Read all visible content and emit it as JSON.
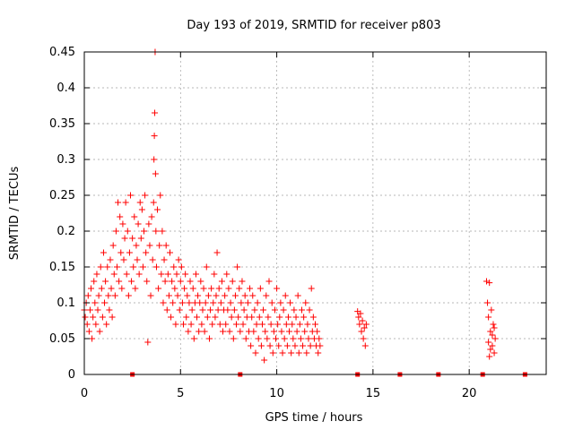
{
  "chart_data": {
    "type": "scatter",
    "title": "Day 193 of 2019, SRMTID for receiver p803",
    "xlabel": "GPS time / hours",
    "ylabel": "SRMTID / TECUs",
    "xlim": [
      0,
      24
    ],
    "ylim": [
      0,
      0.45
    ],
    "x_ticks": [
      0,
      5,
      10,
      15,
      20
    ],
    "x_tick_labels": [
      "0",
      "5",
      "10",
      "15",
      "20"
    ],
    "y_ticks": [
      0,
      0.05,
      0.1,
      0.15,
      0.2,
      0.25,
      0.3,
      0.35,
      0.4,
      0.45
    ],
    "y_tick_labels": [
      "0",
      "0.05",
      "0.1",
      "0.15",
      "0.2",
      "0.25",
      "0.3",
      "0.35",
      "0.4",
      "0.45"
    ],
    "grid": true,
    "marker": "+",
    "series_color": "#ff0000",
    "series": [
      {
        "name": "SRMTID",
        "points": [
          [
            0.0,
            0.09
          ],
          [
            0.05,
            0.08
          ],
          [
            0.1,
            0.1
          ],
          [
            0.15,
            0.07
          ],
          [
            0.2,
            0.11
          ],
          [
            0.25,
            0.06
          ],
          [
            0.3,
            0.09
          ],
          [
            0.35,
            0.12
          ],
          [
            0.4,
            0.05
          ],
          [
            0.45,
            0.08
          ],
          [
            0.5,
            0.13
          ],
          [
            0.55,
            0.1
          ],
          [
            0.6,
            0.07
          ],
          [
            0.65,
            0.14
          ],
          [
            0.7,
            0.09
          ],
          [
            0.75,
            0.11
          ],
          [
            0.8,
            0.06
          ],
          [
            0.85,
            0.15
          ],
          [
            0.9,
            0.12
          ],
          [
            0.95,
            0.08
          ],
          [
            1.0,
            0.17
          ],
          [
            1.05,
            0.1
          ],
          [
            1.1,
            0.13
          ],
          [
            1.15,
            0.07
          ],
          [
            1.2,
            0.15
          ],
          [
            1.25,
            0.11
          ],
          [
            1.3,
            0.09
          ],
          [
            1.35,
            0.16
          ],
          [
            1.4,
            0.12
          ],
          [
            1.45,
            0.08
          ],
          [
            1.5,
            0.18
          ],
          [
            1.55,
            0.14
          ],
          [
            1.6,
            0.11
          ],
          [
            1.65,
            0.2
          ],
          [
            1.7,
            0.15
          ],
          [
            1.75,
            0.24
          ],
          [
            1.8,
            0.13
          ],
          [
            1.85,
            0.22
          ],
          [
            1.9,
            0.17
          ],
          [
            1.95,
            0.12
          ],
          [
            2.0,
            0.21
          ],
          [
            2.05,
            0.16
          ],
          [
            2.1,
            0.19
          ],
          [
            2.15,
            0.24
          ],
          [
            2.2,
            0.14
          ],
          [
            2.25,
            0.2
          ],
          [
            2.3,
            0.11
          ],
          [
            2.35,
            0.17
          ],
          [
            2.4,
            0.25
          ],
          [
            2.45,
            0.13
          ],
          [
            2.5,
            0.19
          ],
          [
            2.55,
            0.15
          ],
          [
            2.6,
            0.22
          ],
          [
            2.65,
            0.12
          ],
          [
            2.7,
            0.18
          ],
          [
            2.75,
            0.16
          ],
          [
            2.8,
            0.21
          ],
          [
            2.85,
            0.14
          ],
          [
            2.9,
            0.24
          ],
          [
            2.95,
            0.19
          ],
          [
            3.0,
            0.23
          ],
          [
            3.05,
            0.15
          ],
          [
            3.1,
            0.2
          ],
          [
            3.15,
            0.25
          ],
          [
            3.2,
            0.17
          ],
          [
            3.25,
            0.13
          ],
          [
            3.3,
            0.045
          ],
          [
            3.35,
            0.21
          ],
          [
            3.4,
            0.18
          ],
          [
            3.45,
            0.11
          ],
          [
            3.5,
            0.22
          ],
          [
            3.55,
            0.16
          ],
          [
            3.6,
            0.24
          ],
          [
            3.62,
            0.3
          ],
          [
            3.64,
            0.333
          ],
          [
            3.66,
            0.365
          ],
          [
            3.68,
            0.45
          ],
          [
            3.7,
            0.28
          ],
          [
            3.72,
            0.2
          ],
          [
            3.75,
            0.15
          ],
          [
            3.8,
            0.23
          ],
          [
            3.85,
            0.12
          ],
          [
            3.9,
            0.18
          ],
          [
            3.95,
            0.25
          ],
          [
            4.0,
            0.14
          ],
          [
            4.05,
            0.2
          ],
          [
            4.1,
            0.1
          ],
          [
            4.15,
            0.16
          ],
          [
            4.2,
            0.13
          ],
          [
            4.25,
            0.18
          ],
          [
            4.3,
            0.09
          ],
          [
            4.35,
            0.14
          ],
          [
            4.4,
            0.11
          ],
          [
            4.45,
            0.17
          ],
          [
            4.5,
            0.08
          ],
          [
            4.55,
            0.13
          ],
          [
            4.6,
            0.1
          ],
          [
            4.65,
            0.15
          ],
          [
            4.7,
            0.12
          ],
          [
            4.75,
            0.07
          ],
          [
            4.8,
            0.14
          ],
          [
            4.85,
            0.11
          ],
          [
            4.9,
            0.16
          ],
          [
            4.95,
            0.09
          ],
          [
            5.0,
            0.13
          ],
          [
            5.05,
            0.15
          ],
          [
            5.1,
            0.1
          ],
          [
            5.15,
            0.07
          ],
          [
            5.2,
            0.12
          ],
          [
            5.25,
            0.14
          ],
          [
            5.3,
            0.08
          ],
          [
            5.35,
            0.11
          ],
          [
            5.4,
            0.06
          ],
          [
            5.45,
            0.1
          ],
          [
            5.5,
            0.13
          ],
          [
            5.55,
            0.07
          ],
          [
            5.6,
            0.09
          ],
          [
            5.65,
            0.12
          ],
          [
            5.7,
            0.05
          ],
          [
            5.75,
            0.1
          ],
          [
            5.8,
            0.14
          ],
          [
            5.85,
            0.08
          ],
          [
            5.9,
            0.11
          ],
          [
            5.95,
            0.06
          ],
          [
            6.0,
            0.1
          ],
          [
            6.05,
            0.13
          ],
          [
            6.1,
            0.07
          ],
          [
            6.15,
            0.09
          ],
          [
            6.2,
            0.12
          ],
          [
            6.25,
            0.06
          ],
          [
            6.3,
            0.1
          ],
          [
            6.35,
            0.15
          ],
          [
            6.4,
            0.08
          ],
          [
            6.45,
            0.11
          ],
          [
            6.5,
            0.05
          ],
          [
            6.55,
            0.09
          ],
          [
            6.6,
            0.12
          ],
          [
            6.65,
            0.07
          ],
          [
            6.7,
            0.1
          ],
          [
            6.75,
            0.14
          ],
          [
            6.8,
            0.08
          ],
          [
            6.85,
            0.11
          ],
          [
            6.9,
            0.17
          ],
          [
            6.95,
            0.09
          ],
          [
            7.0,
            0.12
          ],
          [
            7.05,
            0.07
          ],
          [
            7.1,
            0.1
          ],
          [
            7.15,
            0.13
          ],
          [
            7.2,
            0.06
          ],
          [
            7.25,
            0.09
          ],
          [
            7.3,
            0.11
          ],
          [
            7.35,
            0.07
          ],
          [
            7.4,
            0.14
          ],
          [
            7.45,
            0.09
          ],
          [
            7.5,
            0.12
          ],
          [
            7.55,
            0.06
          ],
          [
            7.6,
            0.1
          ],
          [
            7.65,
            0.08
          ],
          [
            7.7,
            0.13
          ],
          [
            7.75,
            0.05
          ],
          [
            7.8,
            0.09
          ],
          [
            7.85,
            0.11
          ],
          [
            7.9,
            0.07
          ],
          [
            7.95,
            0.15
          ],
          [
            8.0,
            0.08
          ],
          [
            8.05,
            0.12
          ],
          [
            8.1,
            0.06
          ],
          [
            8.15,
            0.1
          ],
          [
            8.2,
            0.13
          ],
          [
            8.25,
            0.07
          ],
          [
            8.3,
            0.09
          ],
          [
            8.35,
            0.11
          ],
          [
            8.4,
            0.05
          ],
          [
            8.45,
            0.08
          ],
          [
            8.5,
            0.1
          ],
          [
            8.55,
            0.06
          ],
          [
            8.6,
            0.12
          ],
          [
            8.65,
            0.04
          ],
          [
            8.7,
            0.08
          ],
          [
            8.75,
            0.11
          ],
          [
            8.8,
            0.06
          ],
          [
            8.85,
            0.09
          ],
          [
            8.9,
            0.03
          ],
          [
            8.95,
            0.07
          ],
          [
            9.0,
            0.1
          ],
          [
            9.05,
            0.05
          ],
          [
            9.1,
            0.08
          ],
          [
            9.15,
            0.12
          ],
          [
            9.2,
            0.04
          ],
          [
            9.25,
            0.07
          ],
          [
            9.3,
            0.09
          ],
          [
            9.35,
            0.02
          ],
          [
            9.4,
            0.06
          ],
          [
            9.45,
            0.11
          ],
          [
            9.5,
            0.05
          ],
          [
            9.55,
            0.08
          ],
          [
            9.6,
            0.13
          ],
          [
            9.65,
            0.04
          ],
          [
            9.7,
            0.07
          ],
          [
            9.75,
            0.1
          ],
          [
            9.8,
            0.03
          ],
          [
            9.85,
            0.06
          ],
          [
            9.9,
            0.09
          ],
          [
            9.95,
            0.05
          ],
          [
            10.0,
            0.12
          ],
          [
            10.05,
            0.07
          ],
          [
            10.1,
            0.04
          ],
          [
            10.15,
            0.08
          ],
          [
            10.2,
            0.1
          ],
          [
            10.25,
            0.06
          ],
          [
            10.3,
            0.03
          ],
          [
            10.35,
            0.09
          ],
          [
            10.4,
            0.05
          ],
          [
            10.45,
            0.11
          ],
          [
            10.5,
            0.07
          ],
          [
            10.55,
            0.04
          ],
          [
            10.6,
            0.08
          ],
          [
            10.65,
            0.06
          ],
          [
            10.7,
            0.1
          ],
          [
            10.75,
            0.03
          ],
          [
            10.8,
            0.07
          ],
          [
            10.85,
            0.05
          ],
          [
            10.9,
            0.09
          ],
          [
            10.95,
            0.04
          ],
          [
            11.0,
            0.08
          ],
          [
            11.05,
            0.06
          ],
          [
            11.1,
            0.11
          ],
          [
            11.15,
            0.03
          ],
          [
            11.2,
            0.07
          ],
          [
            11.25,
            0.05
          ],
          [
            11.3,
            0.09
          ],
          [
            11.35,
            0.04
          ],
          [
            11.4,
            0.08
          ],
          [
            11.45,
            0.06
          ],
          [
            11.5,
            0.1
          ],
          [
            11.55,
            0.03
          ],
          [
            11.6,
            0.07
          ],
          [
            11.65,
            0.05
          ],
          [
            11.7,
            0.09
          ],
          [
            11.75,
            0.04
          ],
          [
            11.8,
            0.12
          ],
          [
            11.85,
            0.06
          ],
          [
            11.9,
            0.08
          ],
          [
            11.95,
            0.05
          ],
          [
            12.0,
            0.07
          ],
          [
            12.05,
            0.04
          ],
          [
            12.1,
            0.06
          ],
          [
            12.15,
            0.03
          ],
          [
            12.2,
            0.05
          ],
          [
            12.25,
            0.04
          ],
          [
            14.2,
            0.088
          ],
          [
            14.25,
            0.08
          ],
          [
            14.3,
            0.07
          ],
          [
            14.35,
            0.085
          ],
          [
            14.4,
            0.06
          ],
          [
            14.45,
            0.075
          ],
          [
            14.5,
            0.05
          ],
          [
            14.55,
            0.065
          ],
          [
            14.6,
            0.04
          ],
          [
            14.65,
            0.07
          ],
          [
            20.9,
            0.13
          ],
          [
            20.95,
            0.1
          ],
          [
            21.0,
            0.08
          ],
          [
            21.05,
            0.128
          ],
          [
            21.1,
            0.06
          ],
          [
            21.15,
            0.09
          ],
          [
            21.2,
            0.04
          ],
          [
            21.25,
            0.07
          ],
          [
            21.3,
            0.03
          ],
          [
            21.35,
            0.05
          ],
          [
            21.0,
            0.045
          ],
          [
            21.1,
            0.035
          ],
          [
            21.2,
            0.055
          ],
          [
            21.3,
            0.065
          ],
          [
            21.05,
            0.025
          ]
        ]
      }
    ],
    "gap_markers": [
      {
        "x": 2.5,
        "y": 0
      },
      {
        "x": 8.1,
        "y": 0
      },
      {
        "x": 14.2,
        "y": 0
      },
      {
        "x": 16.4,
        "y": 0
      },
      {
        "x": 18.4,
        "y": 0
      },
      {
        "x": 20.7,
        "y": 0
      },
      {
        "x": 22.9,
        "y": 0
      }
    ]
  }
}
